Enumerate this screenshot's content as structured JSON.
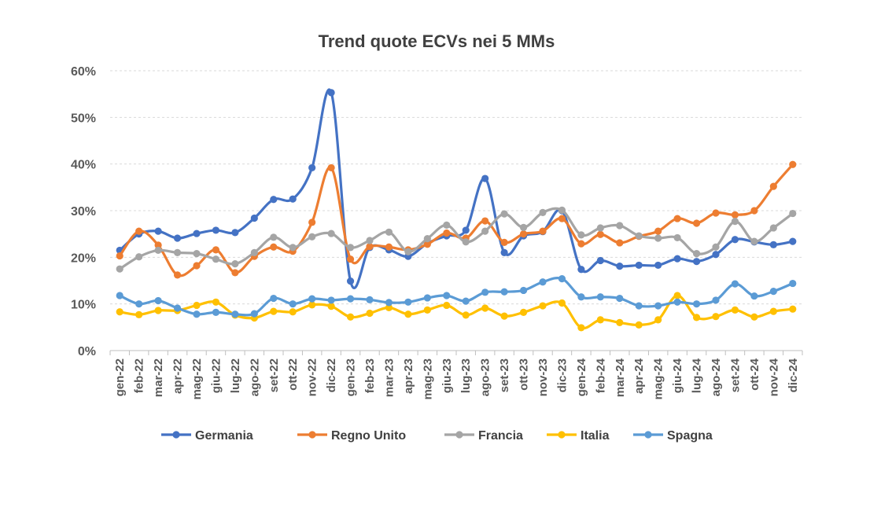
{
  "chart_data": {
    "type": "line",
    "title": "Trend quote ECVs nei 5 MMs",
    "xlabel": "",
    "ylabel": "",
    "ylim": [
      0,
      60
    ],
    "y_ticks": [
      "0%",
      "10%",
      "20%",
      "30%",
      "40%",
      "50%",
      "60%"
    ],
    "grid": true,
    "legend_position": "bottom",
    "categories": [
      "gen-22",
      "feb-22",
      "mar-22",
      "apr-22",
      "mag-22",
      "giu-22",
      "lug-22",
      "ago-22",
      "set-22",
      "ott-22",
      "nov-22",
      "dic-22",
      "gen-23",
      "feb-23",
      "mar-23",
      "apr-23",
      "mag-23",
      "giu-23",
      "lug-23",
      "ago-23",
      "set-23",
      "ott-23",
      "nov-23",
      "dic-23",
      "gen-24",
      "feb-24",
      "mar-24",
      "apr-24",
      "mag-24",
      "giu-24",
      "lug-24",
      "ago-24",
      "set-24",
      "ott-24",
      "nov-24",
      "dic-24"
    ],
    "series": [
      {
        "name": "Germania",
        "color": "#4472C4",
        "values": [
          21.5,
          25.0,
          25.6,
          24.1,
          25.1,
          25.8,
          25.3,
          28.4,
          32.4,
          32.5,
          39.2,
          55.3,
          14.9,
          22.1,
          21.6,
          20.2,
          23.0,
          24.6,
          25.8,
          36.9,
          21.0,
          24.6,
          25.5,
          30.0,
          17.4,
          19.3,
          18.1,
          18.3,
          18.3,
          19.7,
          19.1,
          20.6,
          23.8,
          23.3,
          22.7,
          23.4
        ]
      },
      {
        "name": "Regno Unito",
        "color": "#ED7D31",
        "values": [
          20.3,
          25.6,
          22.6,
          16.2,
          18.2,
          21.6,
          16.7,
          20.2,
          22.2,
          21.3,
          27.5,
          39.2,
          19.6,
          22.3,
          22.2,
          21.6,
          22.8,
          25.2,
          24.1,
          27.8,
          23.2,
          25.0,
          25.6,
          28.3,
          22.9,
          24.9,
          23.1,
          24.5,
          25.6,
          28.3,
          27.3,
          29.5,
          29.1,
          30.0,
          35.2,
          39.9
        ]
      },
      {
        "name": "Francia",
        "color": "#A5A5A5",
        "values": [
          17.5,
          20.1,
          21.5,
          21.0,
          20.8,
          19.6,
          18.6,
          21.0,
          24.3,
          22.1,
          24.4,
          25.1,
          22.1,
          23.6,
          25.4,
          21.2,
          24.0,
          26.9,
          23.3,
          25.6,
          29.3,
          26.4,
          29.6,
          30.1,
          24.8,
          26.3,
          26.8,
          24.6,
          24.1,
          24.2,
          20.8,
          22.2,
          27.7,
          23.4,
          26.3,
          29.4
        ]
      },
      {
        "name": "Italia",
        "color": "#FFC000",
        "values": [
          8.3,
          7.7,
          8.6,
          8.6,
          9.7,
          10.4,
          7.6,
          7.0,
          8.4,
          8.3,
          9.8,
          9.5,
          7.2,
          8.0,
          9.2,
          7.8,
          8.7,
          9.7,
          7.6,
          9.1,
          7.4,
          8.2,
          9.6,
          10.2,
          4.9,
          6.6,
          6.0,
          5.5,
          6.6,
          11.8,
          7.1,
          7.3,
          8.7,
          7.2,
          8.4,
          8.9
        ]
      },
      {
        "name": "Spagna",
        "color": "#5B9BD5",
        "values": [
          11.8,
          10.0,
          10.7,
          9.1,
          7.8,
          8.2,
          7.8,
          7.9,
          11.2,
          10.0,
          11.1,
          10.8,
          11.1,
          10.9,
          10.3,
          10.4,
          11.3,
          11.8,
          10.6,
          12.5,
          12.6,
          12.9,
          14.7,
          15.4,
          11.5,
          11.5,
          11.2,
          9.6,
          9.6,
          10.4,
          10.0,
          10.8,
          14.3,
          11.7,
          12.7,
          14.4
        ]
      }
    ]
  }
}
